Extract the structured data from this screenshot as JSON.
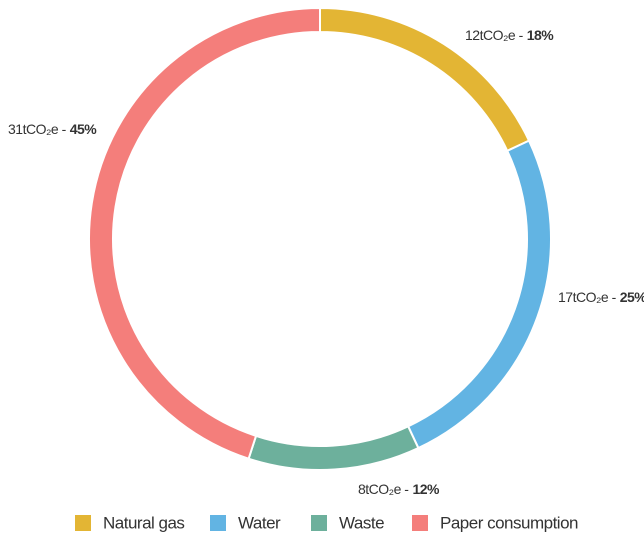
{
  "chart_data": {
    "type": "pie",
    "donut": true,
    "categories": [
      "Natural gas",
      "Water",
      "Waste",
      "Paper consumption"
    ],
    "values": [
      18,
      25,
      12,
      45
    ],
    "value_labels": [
      "18%",
      "25%",
      "12%",
      "45%"
    ],
    "amount_labels": [
      "12tCO₂e -",
      "17tCO₂e -",
      "8tCO₂e -",
      "31tCO₂e -"
    ],
    "colors": [
      "#e3b534",
      "#62b4e3",
      "#6db09c",
      "#f47e7b"
    ],
    "legend": "bottom"
  }
}
